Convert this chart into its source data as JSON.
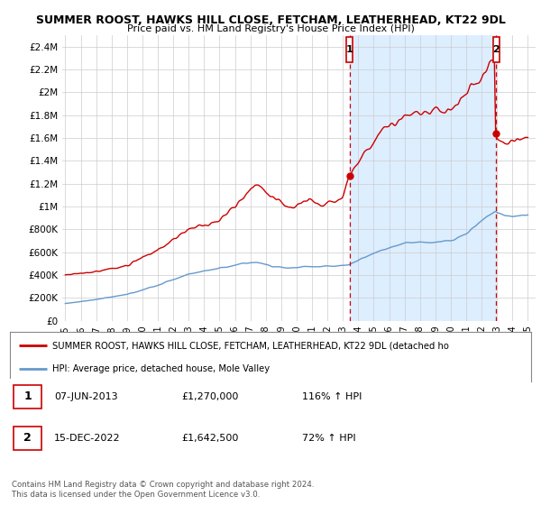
{
  "title": "SUMMER ROOST, HAWKS HILL CLOSE, FETCHAM, LEATHERHEAD, KT22 9DL",
  "subtitle": "Price paid vs. HM Land Registry's House Price Index (HPI)",
  "ylim": [
    0,
    2500000
  ],
  "yticks": [
    0,
    200000,
    400000,
    600000,
    800000,
    1000000,
    1200000,
    1400000,
    1600000,
    1800000,
    2000000,
    2200000,
    2400000
  ],
  "ytick_labels": [
    "£0",
    "£200K",
    "£400K",
    "£600K",
    "£800K",
    "£1M",
    "£1.2M",
    "£1.4M",
    "£1.6M",
    "£1.8M",
    "£2M",
    "£2.2M",
    "£2.4M"
  ],
  "xlim_start": 1994.8,
  "xlim_end": 2025.5,
  "xticks": [
    1995,
    1996,
    1997,
    1998,
    1999,
    2000,
    2001,
    2002,
    2003,
    2004,
    2005,
    2006,
    2007,
    2008,
    2009,
    2010,
    2011,
    2012,
    2013,
    2014,
    2015,
    2016,
    2017,
    2018,
    2019,
    2020,
    2021,
    2022,
    2023,
    2024,
    2025
  ],
  "red_line_color": "#cc0000",
  "blue_line_color": "#6699cc",
  "highlight_color": "#ddeeff",
  "marker1_date": 2013.43,
  "marker1_price": 1270000,
  "marker1_label": "1",
  "marker2_date": 2022.95,
  "marker2_price": 1642500,
  "marker2_label": "2",
  "marker_box_color": "#cc0000",
  "dashed_line_color": "#cc0000",
  "legend_red_label": "SUMMER ROOST, HAWKS HILL CLOSE, FETCHAM, LEATHERHEAD, KT22 9DL (detached ho",
  "legend_blue_label": "HPI: Average price, detached house, Mole Valley",
  "table_row1": [
    "1",
    "07-JUN-2013",
    "£1,270,000",
    "116% ↑ HPI"
  ],
  "table_row2": [
    "2",
    "15-DEC-2022",
    "£1,642,500",
    "72% ↑ HPI"
  ],
  "footnote": "Contains HM Land Registry data © Crown copyright and database right 2024.\nThis data is licensed under the Open Government Licence v3.0.",
  "background_color": "#ffffff",
  "grid_color": "#cccccc"
}
